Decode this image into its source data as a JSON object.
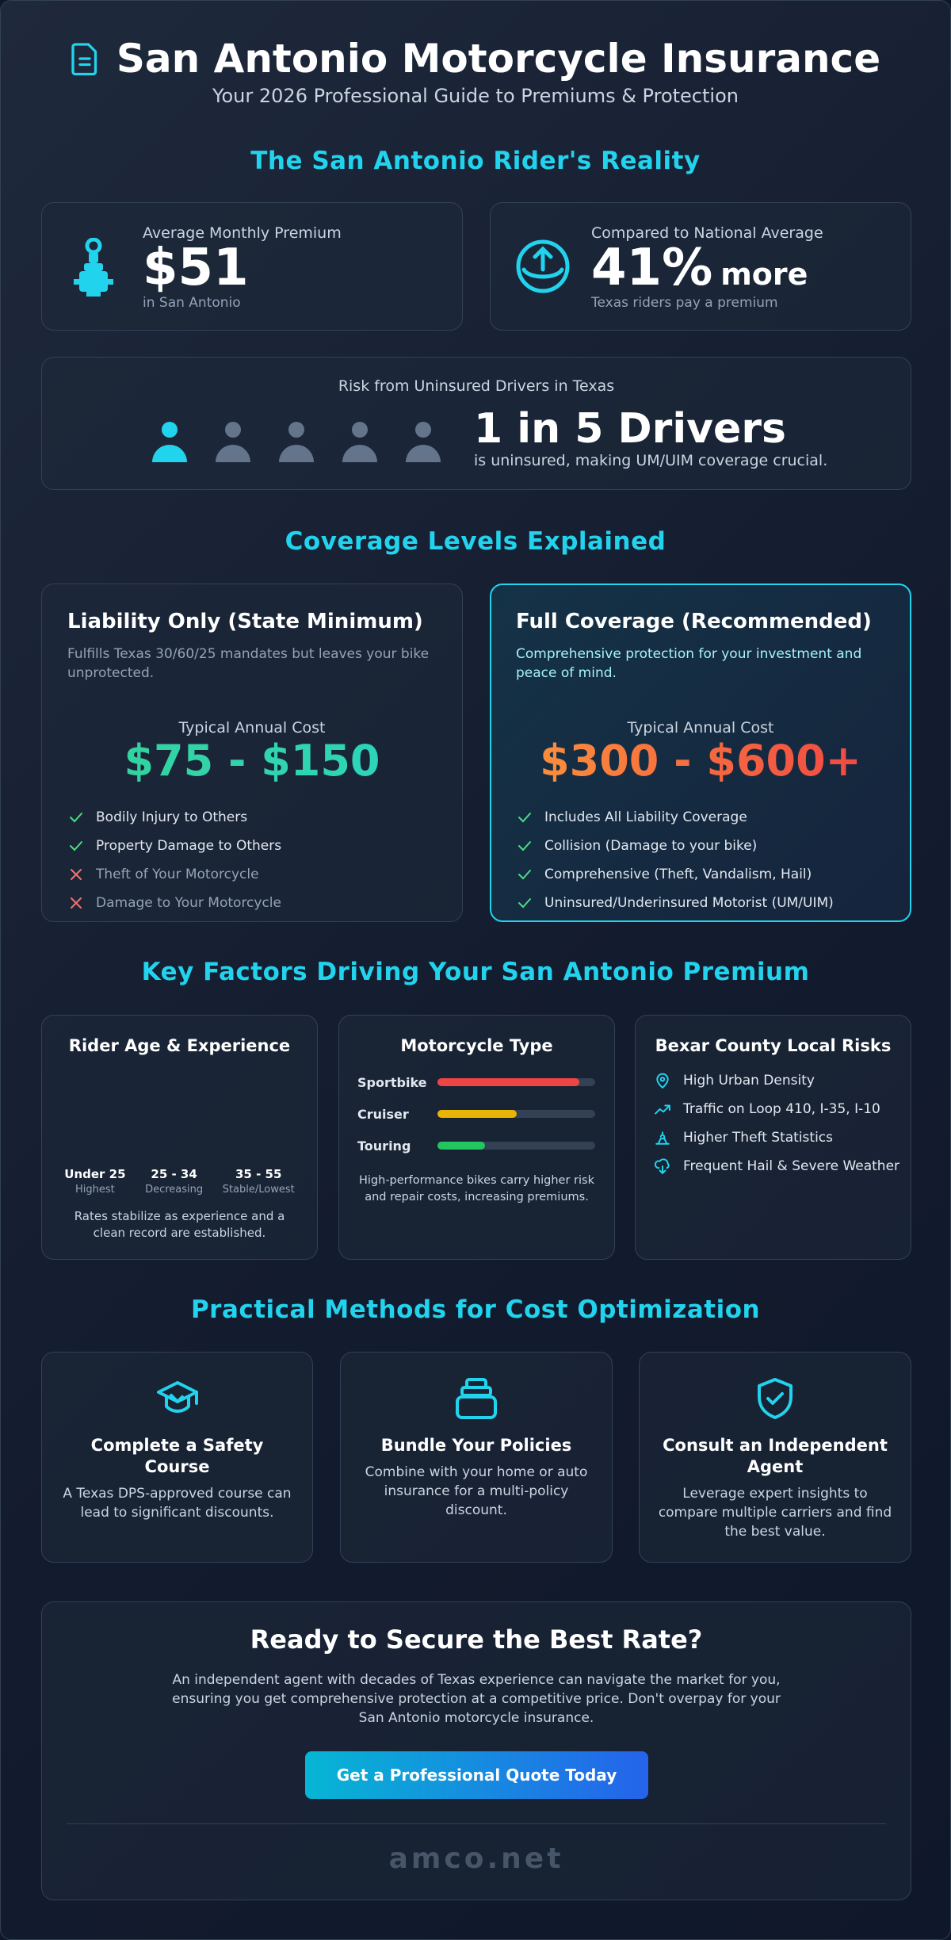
{
  "header": {
    "title": "San Antonio Motorcycle Insurance",
    "subtitle": "Your 2026 Professional Guide to Premiums & Protection"
  },
  "reality": {
    "heading": "The San Antonio Rider's Reality",
    "stats": [
      {
        "label": "Average Monthly Premium",
        "value": "$51",
        "note": "in San Antonio"
      },
      {
        "label": "Compared to National Average",
        "value": "41%",
        "suffix": "more",
        "note": "Texas riders pay a premium"
      }
    ],
    "risk": {
      "label": "Risk from Uninsured Drivers in Texas",
      "value": "1 in 5 Drivers",
      "note": "is uninsured, making UM/UIM coverage crucial."
    }
  },
  "coverage": {
    "heading": "Coverage Levels Explained",
    "plans": [
      {
        "title": "Liability Only (State Minimum)",
        "description": "Fulfills Texas 30/60/25 mandates but leaves your bike unprotected.",
        "cost_label": "Typical Annual Cost",
        "cost": "$75 - $150",
        "features": [
          {
            "text": "Bodily Injury to Others",
            "included": true
          },
          {
            "text": "Property Damage to Others",
            "included": true
          },
          {
            "text": "Theft of Your Motorcycle",
            "included": false
          },
          {
            "text": "Damage to Your Motorcycle",
            "included": false
          }
        ]
      },
      {
        "title": "Full Coverage (Recommended)",
        "description": "Comprehensive protection for your investment and peace of mind.",
        "cost_label": "Typical Annual Cost",
        "cost": "$300 - $600+",
        "features": [
          {
            "text": "Includes All Liability Coverage",
            "included": true
          },
          {
            "text": "Collision (Damage to your bike)",
            "included": true
          },
          {
            "text": "Comprehensive (Theft, Vandalism, Hail)",
            "included": true
          },
          {
            "text": "Uninsured/Underinsured Motorist (UM/UIM)",
            "included": true
          }
        ]
      }
    ]
  },
  "factors": {
    "heading": "Key Factors Driving Your San Antonio Premium",
    "age": {
      "title": "Rider Age & Experience",
      "groups": [
        {
          "label": "Under 25",
          "note": "Highest"
        },
        {
          "label": "25 - 34",
          "note": "Decreasing"
        },
        {
          "label": "35 - 55",
          "note": "Stable/Lowest"
        }
      ],
      "note": "Rates stabilize as experience and a clean record are established."
    },
    "motorcycle": {
      "title": "Motorcycle Type",
      "types": [
        {
          "name": "Sportbike",
          "level": 90,
          "color": "#ef4444"
        },
        {
          "name": "Cruiser",
          "level": 50,
          "color": "#eab308"
        },
        {
          "name": "Touring",
          "level": 30,
          "color": "#22c55e"
        }
      ],
      "note": "High-performance bikes carry higher risk and repair costs, increasing premiums."
    },
    "local": {
      "title": "Bexar County Local Risks",
      "items": [
        "High Urban Density",
        "Traffic on Loop 410, I-35, I-10",
        "Higher Theft Statistics",
        "Frequent Hail & Severe Weather"
      ]
    }
  },
  "methods": {
    "heading": "Practical Methods for Cost Optimization",
    "items": [
      {
        "title": "Complete a Safety Course",
        "text": "A Texas DPS-approved course can lead to significant discounts."
      },
      {
        "title": "Bundle Your Policies",
        "text": "Combine with your home or auto insurance for a multi-policy discount."
      },
      {
        "title": "Consult an Independent Agent",
        "text": "Leverage expert insights to compare multiple carriers and find the best value."
      }
    ]
  },
  "cta": {
    "title": "Ready to Secure the Best Rate?",
    "text": "An independent agent with decades of Texas experience can navigate the market for you, ensuring you get comprehensive protection at a competitive price. Don't overpay for your San Antonio motorcycle insurance.",
    "button": "Get a Professional Quote Today",
    "footer": "amco.net"
  }
}
